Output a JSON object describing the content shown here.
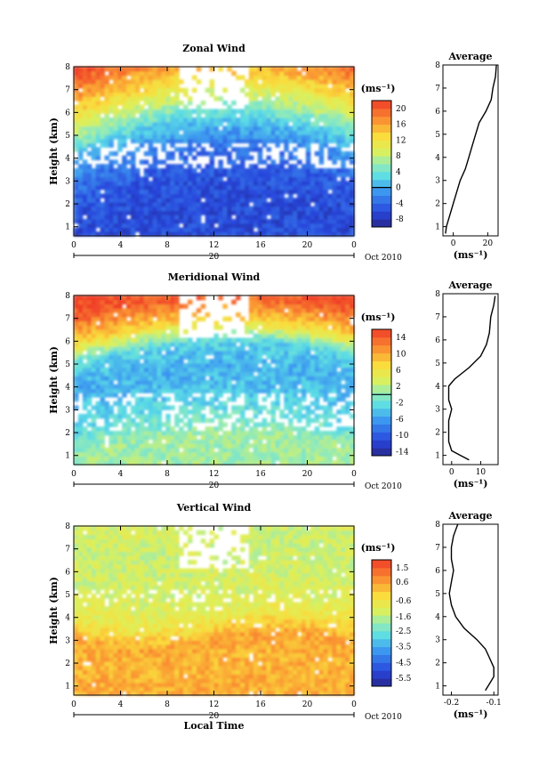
{
  "common": {
    "ylabel": "Height (km)",
    "xlabel": "Local Time",
    "x_ticks": [
      "0",
      "4",
      "8",
      "12",
      "16",
      "20",
      "0"
    ],
    "date_day": "20",
    "date_label": "Oct 2010",
    "avg_title": "Average",
    "unit": "(ms⁻¹)"
  },
  "chart_data": [
    {
      "type": "heatmap",
      "title": "Zonal Wind",
      "xlabel": "",
      "ylabel": "Height (km)",
      "x_range_hours": [
        0,
        24
      ],
      "y_range_km": [
        0.6,
        8
      ],
      "y_ticks": [
        1,
        2,
        3,
        4,
        5,
        6,
        7,
        8
      ],
      "colorbar": {
        "unit": "(ms⁻¹)",
        "range": [
          -10,
          22
        ],
        "ticks": [
          -8,
          -4,
          0,
          4,
          8,
          12,
          16,
          20
        ],
        "zero_contour": 0
      },
      "profile_control": {
        "height_km": [
          1,
          2,
          3,
          4,
          5,
          6,
          7,
          8
        ],
        "value": [
          -6,
          -5,
          -3,
          1,
          7,
          13,
          18,
          22
        ]
      },
      "average_profile": {
        "title": "Average",
        "x_range": [
          -6,
          26
        ],
        "x_ticks": [
          0,
          20
        ],
        "xlabel": "(ms⁻¹)",
        "points": [
          [
            -4.5,
            0.7
          ],
          [
            -4,
            1.0
          ],
          [
            -2,
            1.5
          ],
          [
            0,
            2.0
          ],
          [
            2,
            2.5
          ],
          [
            4,
            3.0
          ],
          [
            7,
            3.5
          ],
          [
            9,
            4.0
          ],
          [
            11,
            4.5
          ],
          [
            13,
            5.0
          ],
          [
            15,
            5.5
          ],
          [
            19,
            6.0
          ],
          [
            22,
            6.5
          ],
          [
            23,
            7.0
          ],
          [
            24.5,
            7.5
          ],
          [
            25,
            8.0
          ]
        ]
      }
    },
    {
      "type": "heatmap",
      "title": "Meridional Wind",
      "xlabel": "",
      "ylabel": "Height (km)",
      "x_range_hours": [
        0,
        24
      ],
      "y_range_km": [
        0.6,
        8
      ],
      "y_ticks": [
        1,
        2,
        3,
        4,
        5,
        6,
        7,
        8
      ],
      "colorbar": {
        "unit": "(ms⁻¹)",
        "range": [
          -15,
          16
        ],
        "ticks": [
          -14,
          -10,
          -6,
          -2,
          2,
          6,
          10,
          14
        ],
        "zero_contour": 0
      },
      "profile_control": {
        "height_km": [
          1,
          2,
          3,
          4,
          5,
          6,
          7,
          8
        ],
        "value": [
          1,
          -2,
          -4,
          -5,
          -3,
          8,
          14,
          16
        ]
      },
      "average_profile": {
        "title": "Average",
        "x_range": [
          -3,
          16
        ],
        "x_ticks": [
          0,
          10
        ],
        "xlabel": "(ms⁻¹)",
        "points": [
          [
            6,
            0.8
          ],
          [
            3,
            1.0
          ],
          [
            0,
            1.2
          ],
          [
            -1,
            1.6
          ],
          [
            -1,
            2.5
          ],
          [
            0,
            3.0
          ],
          [
            -1,
            3.4
          ],
          [
            -1,
            4.0
          ],
          [
            1,
            4.3
          ],
          [
            6,
            4.8
          ],
          [
            10,
            5.3
          ],
          [
            12,
            5.8
          ],
          [
            13,
            6.3
          ],
          [
            13.5,
            7.0
          ],
          [
            14.5,
            7.5
          ],
          [
            15,
            7.9
          ]
        ]
      }
    },
    {
      "type": "heatmap",
      "title": "Vertical Wind",
      "xlabel": "Local Time",
      "ylabel": "Height (km)",
      "x_range_hours": [
        0,
        24
      ],
      "y_range_km": [
        0.6,
        8
      ],
      "y_ticks": [
        1,
        2,
        3,
        4,
        5,
        6,
        7,
        8
      ],
      "colorbar": {
        "unit": "(ms⁻¹)",
        "range": [
          -6,
          2
        ],
        "ticks": [
          -5.5,
          -4.5,
          -3.5,
          -2.5,
          -1.6,
          -0.6,
          0.6,
          1.5
        ],
        "tick_labels": [
          "-5.5",
          "-4.5",
          "-3.5",
          "-2.5",
          "-1.6",
          "-0.6",
          "0.6",
          "1.5"
        ]
      },
      "profile_control": {
        "height_km": [
          1,
          2,
          3,
          4,
          5,
          6,
          7,
          8
        ],
        "value": [
          0.4,
          0.3,
          0.5,
          -0.8,
          -1.2,
          -1.3,
          -1.4,
          -1.2
        ]
      },
      "average_profile": {
        "title": "Average",
        "x_range": [
          -0.22,
          -0.09
        ],
        "x_ticks": [
          -0.2,
          -0.1
        ],
        "xlabel": "(ms⁻¹)",
        "points": [
          [
            -0.12,
            0.8
          ],
          [
            -0.11,
            1.1
          ],
          [
            -0.1,
            1.4
          ],
          [
            -0.1,
            1.8
          ],
          [
            -0.11,
            2.2
          ],
          [
            -0.12,
            2.6
          ],
          [
            -0.14,
            3.0
          ],
          [
            -0.17,
            3.5
          ],
          [
            -0.19,
            4.0
          ],
          [
            -0.2,
            4.5
          ],
          [
            -0.205,
            5.0
          ],
          [
            -0.2,
            5.5
          ],
          [
            -0.195,
            6.0
          ],
          [
            -0.2,
            6.5
          ],
          [
            -0.2,
            7.0
          ],
          [
            -0.195,
            7.5
          ],
          [
            -0.185,
            8.0
          ]
        ]
      }
    }
  ]
}
